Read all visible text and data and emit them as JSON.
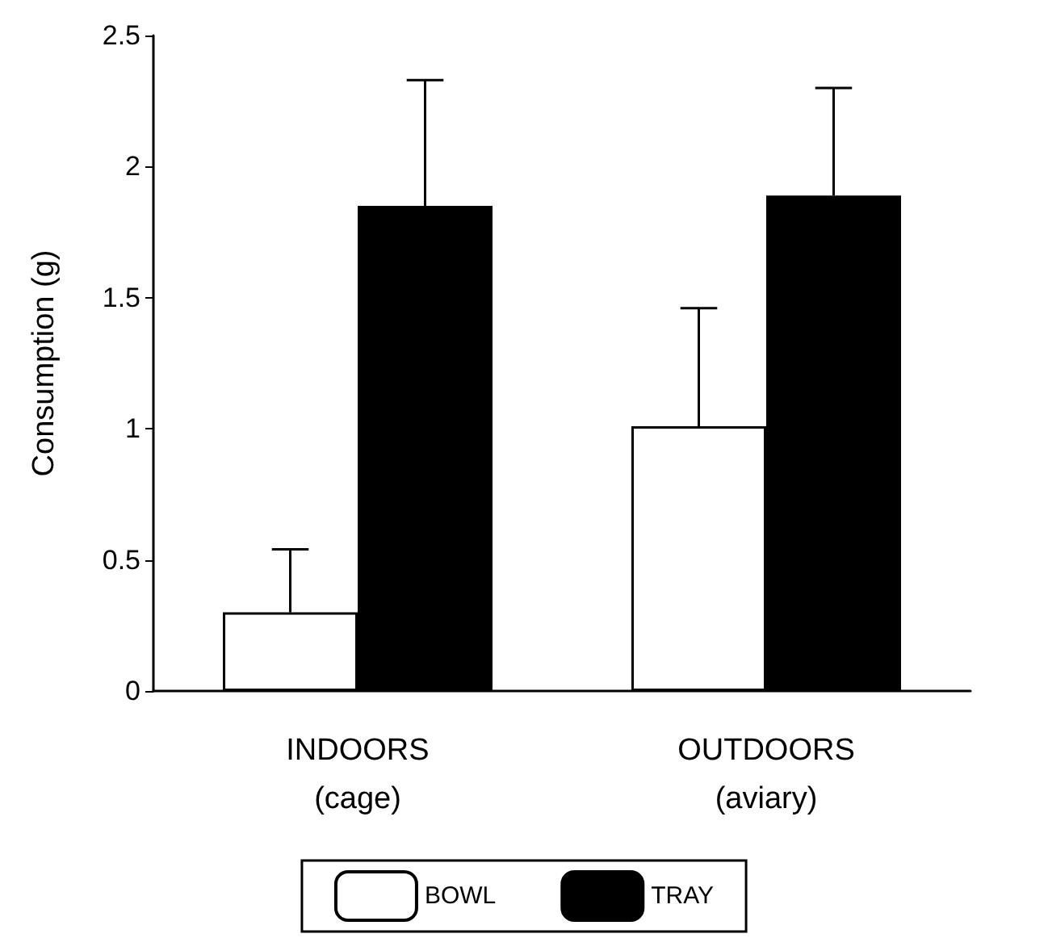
{
  "chart_data": {
    "type": "bar",
    "ylabel": "Consumption (g)",
    "categories": [
      "INDOORS\n(cage)",
      "OUTDOORS\n(aviary)"
    ],
    "series": [
      {
        "name": "BOWL",
        "color": "#ffffff",
        "values": [
          0.3,
          1.01
        ],
        "errors": [
          [
            0.3,
            0.54
          ],
          [
            1.01,
            1.46
          ]
        ]
      },
      {
        "name": "TRAY",
        "color": "#000000",
        "values": [
          1.85,
          1.89
        ],
        "errors": [
          [
            1.85,
            2.33
          ],
          [
            1.89,
            2.3
          ]
        ]
      }
    ],
    "ylim": [
      0,
      2.5
    ],
    "yticks": [
      0,
      0.5,
      1,
      1.5,
      2,
      2.5
    ],
    "grid": false,
    "legend": "bottom"
  }
}
